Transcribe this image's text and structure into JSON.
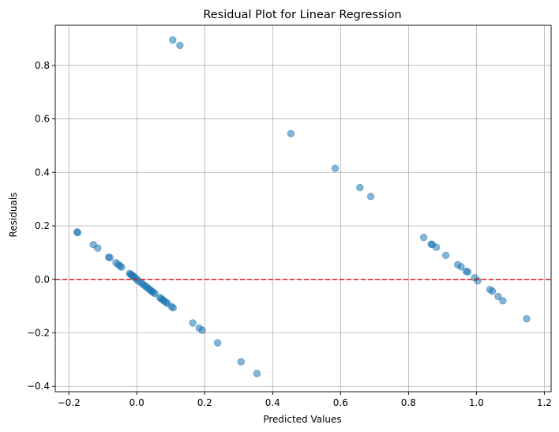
{
  "chart_data": {
    "type": "scatter",
    "title": "Residual Plot for Linear Regression",
    "xlabel": "Predicted Values",
    "ylabel": "Residuals",
    "xlim": [
      -0.24,
      1.22
    ],
    "ylim": [
      -0.42,
      0.95
    ],
    "xticks": [
      -0.2,
      0.0,
      0.2,
      0.4,
      0.6,
      0.8,
      1.0,
      1.2
    ],
    "yticks": [
      -0.4,
      -0.2,
      0.0,
      0.2,
      0.4,
      0.6,
      0.8
    ],
    "xtick_labels": [
      "−0.2",
      "0.0",
      "0.2",
      "0.4",
      "0.6",
      "0.8",
      "1.0",
      "1.2"
    ],
    "ytick_labels": [
      "−0.4",
      "−0.2",
      "0.0",
      "0.2",
      "0.4",
      "0.6",
      "0.8"
    ],
    "grid": true,
    "reference_line": {
      "y": 0.0,
      "color": "#e31a1c",
      "style": "dashed"
    },
    "point_color": "#1f77b4",
    "point_alpha": 0.55,
    "series": [
      {
        "points": [
          [
            0.106,
            0.895
          ],
          [
            0.127,
            0.875
          ],
          [
            0.454,
            0.545
          ],
          [
            0.584,
            0.415
          ],
          [
            0.657,
            0.343
          ],
          [
            0.689,
            0.31
          ],
          [
            -0.176,
            0.177
          ],
          [
            -0.174,
            0.175
          ],
          [
            -0.128,
            0.13
          ],
          [
            -0.115,
            0.117
          ],
          [
            -0.083,
            0.083
          ],
          [
            -0.079,
            0.081
          ],
          [
            -0.061,
            0.062
          ],
          [
            -0.054,
            0.055
          ],
          [
            -0.049,
            0.05
          ],
          [
            -0.045,
            0.046
          ],
          [
            -0.021,
            0.022
          ],
          [
            -0.018,
            0.019
          ],
          [
            -0.015,
            0.016
          ],
          [
            -0.012,
            0.013
          ],
          [
            -0.009,
            0.01
          ],
          [
            -0.005,
            0.006
          ],
          [
            0.0,
            0.0
          ],
          [
            0.004,
            -0.005
          ],
          [
            0.012,
            -0.012
          ],
          [
            0.018,
            -0.018
          ],
          [
            0.023,
            -0.023
          ],
          [
            0.028,
            -0.028
          ],
          [
            0.033,
            -0.033
          ],
          [
            0.037,
            -0.037
          ],
          [
            0.041,
            -0.041
          ],
          [
            0.045,
            -0.045
          ],
          [
            0.049,
            -0.049
          ],
          [
            0.053,
            -0.053
          ],
          [
            0.068,
            -0.068
          ],
          [
            0.072,
            -0.072
          ],
          [
            0.076,
            -0.076
          ],
          [
            0.08,
            -0.08
          ],
          [
            0.086,
            -0.086
          ],
          [
            0.09,
            -0.09
          ],
          [
            0.103,
            -0.102
          ],
          [
            0.107,
            -0.106
          ],
          [
            0.165,
            -0.163
          ],
          [
            0.184,
            -0.182
          ],
          [
            0.193,
            -0.19
          ],
          [
            0.238,
            -0.237
          ],
          [
            0.307,
            -0.308
          ],
          [
            0.354,
            -0.352
          ],
          [
            0.845,
            0.157
          ],
          [
            0.867,
            0.132
          ],
          [
            0.87,
            0.13
          ],
          [
            0.882,
            0.12
          ],
          [
            0.91,
            0.09
          ],
          [
            0.945,
            0.055
          ],
          [
            0.955,
            0.047
          ],
          [
            0.97,
            0.03
          ],
          [
            0.975,
            0.028
          ],
          [
            0.995,
            0.006
          ],
          [
            1.004,
            -0.005
          ],
          [
            1.04,
            -0.038
          ],
          [
            1.047,
            -0.044
          ],
          [
            1.064,
            -0.064
          ],
          [
            1.078,
            -0.08
          ],
          [
            1.148,
            -0.147
          ]
        ]
      }
    ]
  }
}
